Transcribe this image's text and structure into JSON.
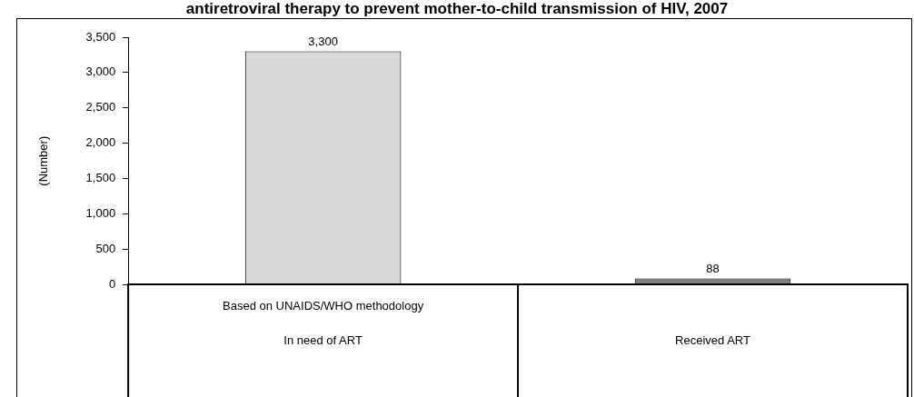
{
  "chart_data": {
    "type": "bar",
    "title": "antiretroviral therapy to prevent mother-to-child transmission of HIV, 2007",
    "ylabel": "(Number)",
    "categories": [
      "In need of ART",
      "Received ART"
    ],
    "values": [
      3300,
      88
    ],
    "colors": [
      "#d9d9d9",
      "#808080"
    ],
    "ylim": [
      0,
      3500
    ],
    "yticks": [
      {
        "value": 0,
        "label": "0"
      },
      {
        "value": 500,
        "label": "500"
      },
      {
        "value": 1000,
        "label": "1,000"
      },
      {
        "value": 1500,
        "label": "1,500"
      },
      {
        "value": 2000,
        "label": "2,000"
      },
      {
        "value": 2500,
        "label": "2,500"
      },
      {
        "value": 3000,
        "label": "3,000"
      },
      {
        "value": 3500,
        "label": "3,500"
      }
    ],
    "value_labels": [
      "3,300",
      "88"
    ],
    "annotations": [
      "Based on UNAIDS/WHO methodology"
    ],
    "grid": false,
    "legend": false
  }
}
